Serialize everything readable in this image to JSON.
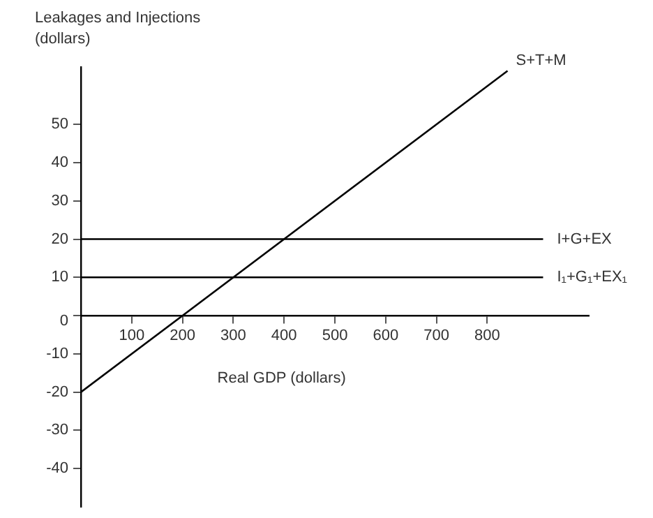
{
  "chart_data": {
    "type": "line",
    "ylabel": "Leakages and Injections (dollars)",
    "xlabel": "Real GDP (dollars)",
    "series": [
      {
        "name": "S+T+M",
        "color": "#000000",
        "x": [
          0,
          840
        ],
        "values": [
          -20,
          64
        ]
      },
      {
        "name": "I+G+EX",
        "color": "#000000",
        "x": [
          0,
          910
        ],
        "values": [
          20,
          20
        ]
      },
      {
        "name": "I₁+G₁+EX₁",
        "color": "#000000",
        "x": [
          0,
          910
        ],
        "values": [
          10,
          10
        ]
      }
    ],
    "xlim": [
      0,
      1000
    ],
    "ylim": [
      -50,
      65
    ],
    "xticks": [
      100,
      200,
      300,
      400,
      500,
      600,
      700,
      800
    ],
    "yticks": [
      -40,
      -30,
      -20,
      -10,
      0,
      10,
      20,
      30,
      40,
      50
    ],
    "grid": false,
    "legend": false,
    "marker": "none",
    "line_style": "solid"
  }
}
